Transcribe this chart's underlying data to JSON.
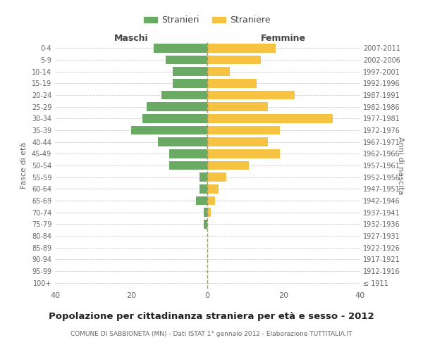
{
  "age_groups": [
    "100+",
    "95-99",
    "90-94",
    "85-89",
    "80-84",
    "75-79",
    "70-74",
    "65-69",
    "60-64",
    "55-59",
    "50-54",
    "45-49",
    "40-44",
    "35-39",
    "30-34",
    "25-29",
    "20-24",
    "15-19",
    "10-14",
    "5-9",
    "0-4"
  ],
  "birth_years": [
    "≤ 1911",
    "1912-1916",
    "1917-1921",
    "1922-1926",
    "1927-1931",
    "1932-1936",
    "1937-1941",
    "1942-1946",
    "1947-1951",
    "1952-1956",
    "1957-1961",
    "1962-1966",
    "1967-1971",
    "1972-1976",
    "1977-1981",
    "1982-1986",
    "1987-1991",
    "1992-1996",
    "1997-2001",
    "2002-2006",
    "2007-2011"
  ],
  "maschi": [
    0,
    0,
    0,
    0,
    0,
    1,
    1,
    3,
    2,
    2,
    10,
    10,
    13,
    20,
    17,
    16,
    12,
    9,
    9,
    11,
    14
  ],
  "femmine": [
    0,
    0,
    0,
    0,
    0,
    0,
    1,
    2,
    3,
    5,
    11,
    19,
    16,
    19,
    33,
    16,
    23,
    13,
    6,
    14,
    18
  ],
  "male_color": "#6aaa64",
  "female_color": "#f5c242",
  "male_label": "Stranieri",
  "female_label": "Straniere",
  "title": "Popolazione per cittadinanza straniera per età e sesso - 2012",
  "subtitle": "COMUNE DI SABBIONETA (MN) - Dati ISTAT 1° gennaio 2012 - Elaborazione TUTTITALIA.IT",
  "xlabel_left": "Maschi",
  "xlabel_right": "Femmine",
  "ylabel_left": "Fasce di età",
  "ylabel_right": "Anni di nascita",
  "xlim": 40,
  "background_color": "#ffffff",
  "grid_color": "#cccccc",
  "text_color": "#666666"
}
